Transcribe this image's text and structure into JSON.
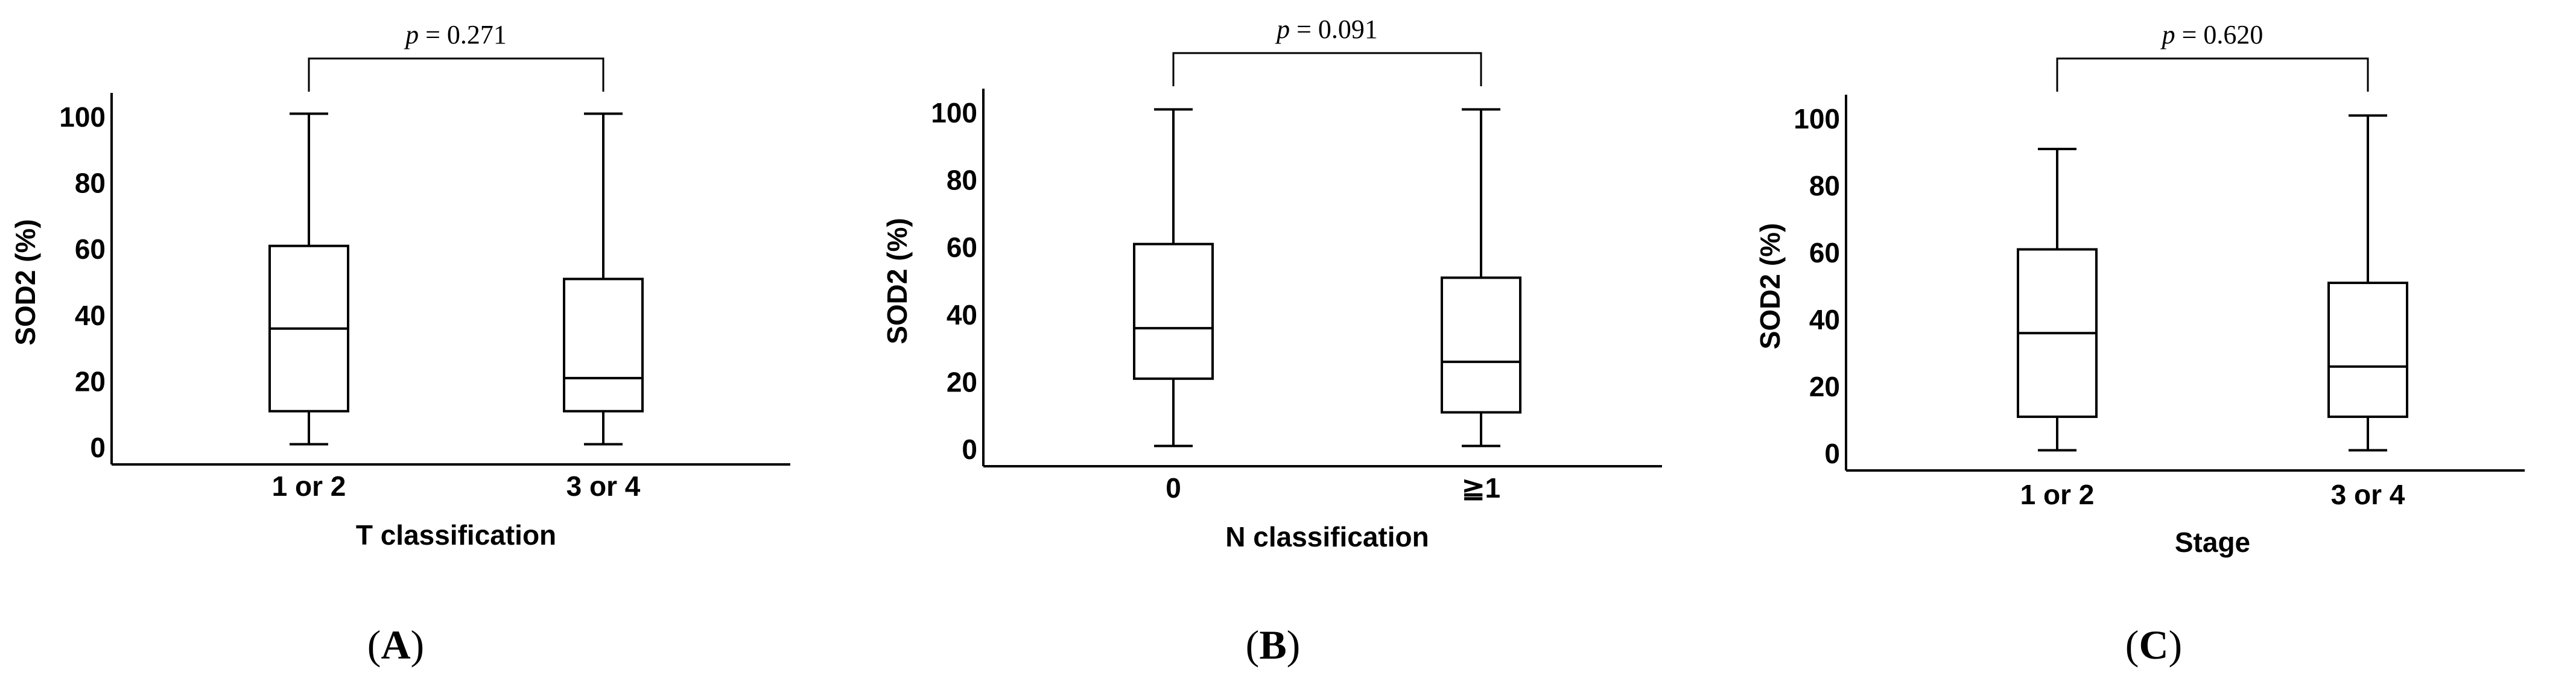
{
  "chart_data": [
    {
      "type": "box",
      "panel_label": "A",
      "ylabel": "SOD2 (%)",
      "xlabel": "T classification",
      "y_ticks": [
        "0",
        "20",
        "40",
        "60",
        "80",
        "100"
      ],
      "ylim": [
        0,
        100
      ],
      "categories": [
        "1 or 2",
        "3 or 4"
      ],
      "boxes": [
        {
          "category": "1 or 2",
          "min": 1,
          "q1": 11,
          "median": 36,
          "q3": 61,
          "max": 101
        },
        {
          "category": "3 or 4",
          "min": 1,
          "q1": 11,
          "median": 21,
          "q3": 51,
          "max": 101
        }
      ],
      "p_prefix": "p",
      "p_value": " = 0.271"
    },
    {
      "type": "box",
      "panel_label": "B",
      "ylabel": "SOD2 (%)",
      "xlabel": "N classification",
      "y_ticks": [
        "0",
        "20",
        "40",
        "60",
        "80",
        "100"
      ],
      "ylim": [
        0,
        100
      ],
      "categories": [
        "0",
        "≧1"
      ],
      "boxes": [
        {
          "category": "0",
          "min": 1,
          "q1": 21,
          "median": 36,
          "q3": 61,
          "max": 101
        },
        {
          "category": "≧1",
          "min": 1,
          "q1": 11,
          "median": 26,
          "q3": 51,
          "max": 101
        }
      ],
      "p_prefix": "p",
      "p_value": " = 0.091"
    },
    {
      "type": "box",
      "panel_label": "C",
      "ylabel": "SOD2 (%)",
      "xlabel": "Stage",
      "y_ticks": [
        "0",
        "20",
        "40",
        "60",
        "80",
        "100"
      ],
      "ylim": [
        0,
        100
      ],
      "categories": [
        "1 or 2",
        "3 or 4"
      ],
      "boxes": [
        {
          "category": "1 or 2",
          "min": 1,
          "q1": 11,
          "median": 36,
          "q3": 61,
          "max": 91
        },
        {
          "category": "3 or 4",
          "min": 1,
          "q1": 11,
          "median": 26,
          "q3": 51,
          "max": 101
        }
      ],
      "p_prefix": "p",
      "p_value": " = 0.620"
    }
  ]
}
